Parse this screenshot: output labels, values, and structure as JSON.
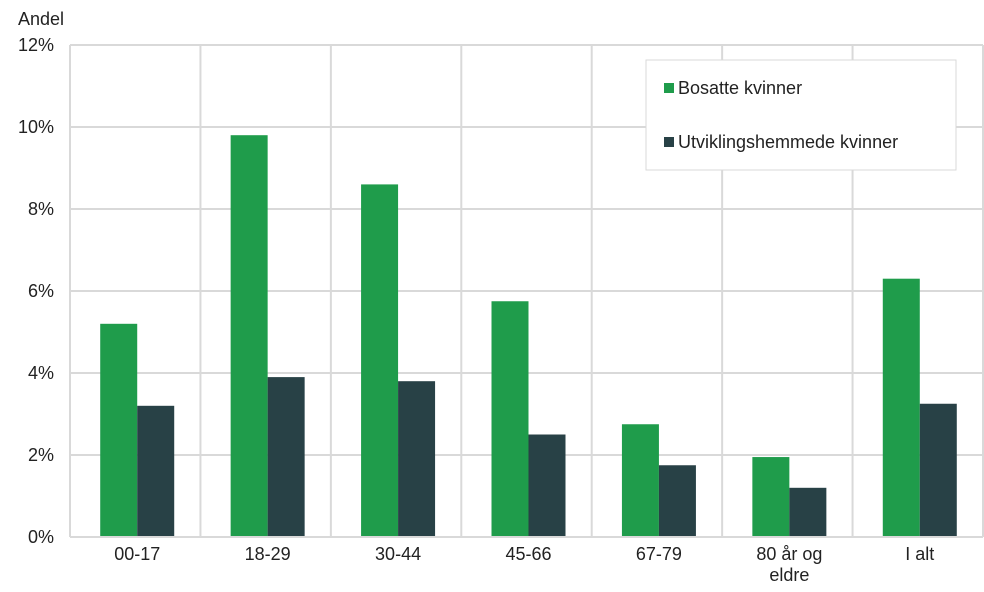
{
  "chart_data": {
    "type": "bar",
    "ylabel": "Andel",
    "categories": [
      "00-17",
      "18-29",
      "30-44",
      "45-66",
      "67-79",
      "80 år og eldre",
      "I alt"
    ],
    "series": [
      {
        "name": "Bosatte kvinner",
        "values": [
          5.2,
          9.8,
          8.6,
          5.75,
          2.75,
          1.95,
          6.3
        ],
        "color": "#1f9c4b"
      },
      {
        "name": "Utviklingshemmede kvinner",
        "values": [
          3.2,
          3.9,
          3.8,
          2.5,
          1.75,
          1.2,
          3.25
        ],
        "color": "#284146"
      }
    ],
    "ylim": [
      0,
      12
    ],
    "yticks": [
      0,
      2,
      4,
      6,
      8,
      10,
      12
    ],
    "ytick_labels": [
      "0%",
      "2%",
      "4%",
      "6%",
      "8%",
      "10%",
      "12%"
    ],
    "grid": true,
    "legend": "top-right",
    "colors": {
      "grid": "#d9d9d9",
      "plot_border": "#d9d9d9"
    }
  }
}
